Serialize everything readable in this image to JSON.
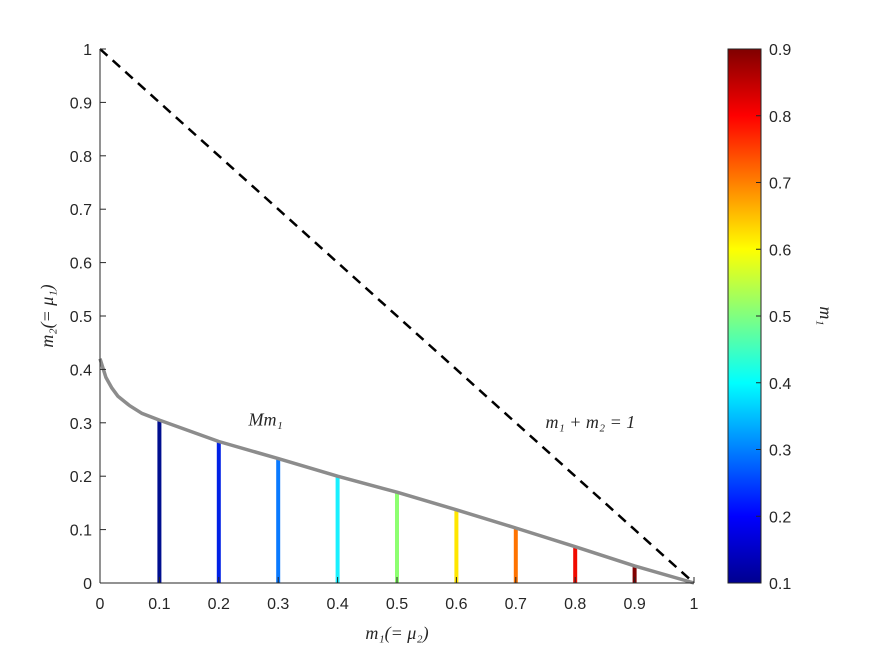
{
  "chart_data": {
    "type": "line",
    "xlabel": "m₁(= μ₂)",
    "ylabel": "m₂(= μ₁)",
    "xlim": [
      0,
      1
    ],
    "ylim": [
      0,
      1
    ],
    "x_ticks": [
      "0",
      "0.1",
      "0.2",
      "0.3",
      "0.4",
      "0.5",
      "0.6",
      "0.7",
      "0.8",
      "0.9",
      "1"
    ],
    "y_ticks": [
      "0",
      "0.1",
      "0.2",
      "0.3",
      "0.4",
      "0.5",
      "0.6",
      "0.7",
      "0.8",
      "0.9",
      "1"
    ],
    "grid": false,
    "curve": {
      "label": "Mm₁",
      "color": "#8c8c8c",
      "x": [
        0,
        0.01,
        0.02,
        0.03,
        0.05,
        0.07,
        0.1,
        0.2,
        0.3,
        0.4,
        0.5,
        0.6,
        0.7,
        0.8,
        0.9,
        1
      ],
      "y": [
        0.42,
        0.385,
        0.365,
        0.35,
        0.332,
        0.318,
        0.305,
        0.265,
        0.233,
        0.2,
        0.17,
        0.137,
        0.103,
        0.068,
        0.032,
        0
      ]
    },
    "boundary_line": {
      "label": "m₁ + m₂ = 1",
      "style": "dashed",
      "color": "#000000",
      "x": [
        0,
        1
      ],
      "y": [
        1,
        0
      ]
    },
    "vertical_segments": [
      {
        "x": 0.1,
        "y_top": 0.305,
        "color": "#000f8f"
      },
      {
        "x": 0.2,
        "y_top": 0.265,
        "color": "#0020e6"
      },
      {
        "x": 0.3,
        "y_top": 0.233,
        "color": "#0a7aff"
      },
      {
        "x": 0.4,
        "y_top": 0.2,
        "color": "#19f0ff"
      },
      {
        "x": 0.5,
        "y_top": 0.17,
        "color": "#8dff70"
      },
      {
        "x": 0.6,
        "y_top": 0.137,
        "color": "#ffe600"
      },
      {
        "x": 0.7,
        "y_top": 0.103,
        "color": "#ff7300"
      },
      {
        "x": 0.8,
        "y_top": 0.068,
        "color": "#f00a00"
      },
      {
        "x": 0.9,
        "y_top": 0.032,
        "color": "#800000"
      }
    ],
    "colorbar": {
      "label": "m₁",
      "min": 0.1,
      "max": 0.9,
      "ticks": [
        "0.1",
        "0.2",
        "0.3",
        "0.4",
        "0.5",
        "0.6",
        "0.7",
        "0.8",
        "0.9"
      ],
      "colormap": [
        "#00008f",
        "#0000ff",
        "#0080ff",
        "#00ffff",
        "#80ff80",
        "#ffff00",
        "#ff8000",
        "#ff0000",
        "#800000"
      ]
    }
  }
}
